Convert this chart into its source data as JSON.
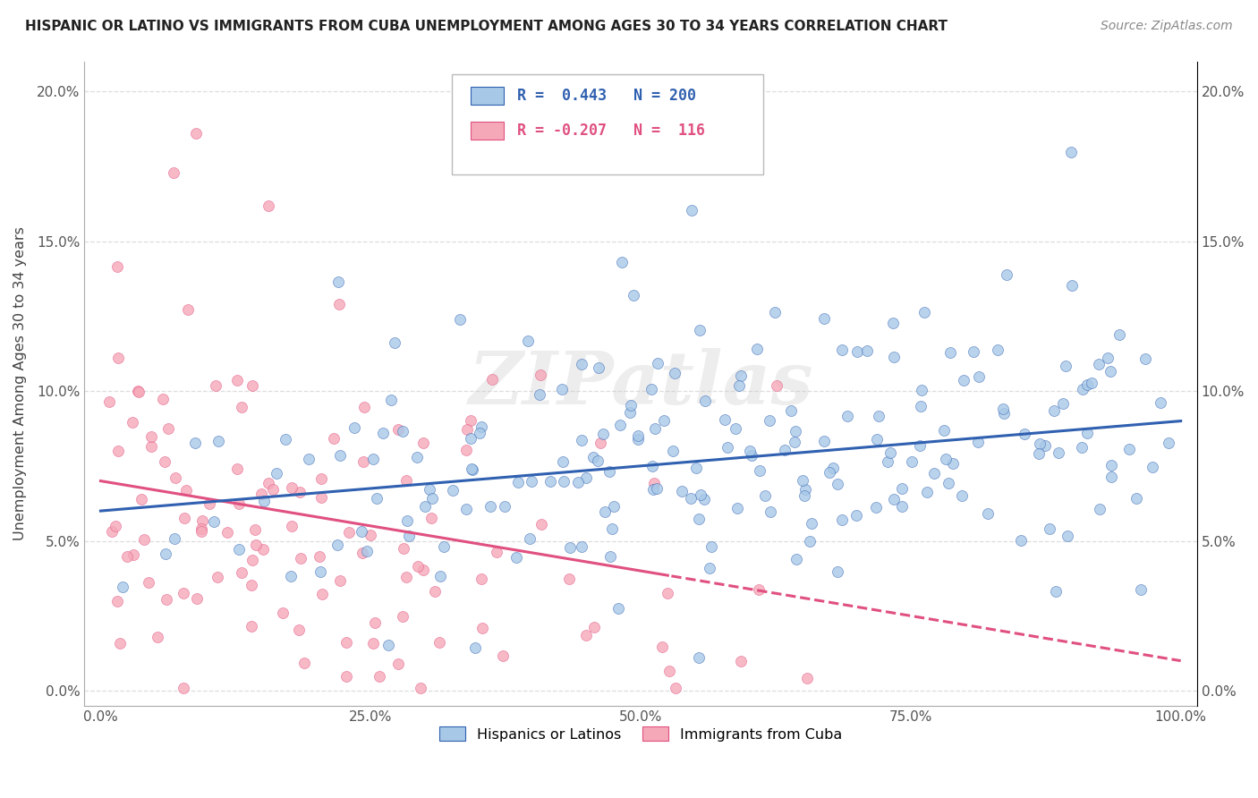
{
  "title": "HISPANIC OR LATINO VS IMMIGRANTS FROM CUBA UNEMPLOYMENT AMONG AGES 30 TO 34 YEARS CORRELATION CHART",
  "source": "Source: ZipAtlas.com",
  "ylabel": "Unemployment Among Ages 30 to 34 years",
  "r_blue": 0.443,
  "n_blue": 200,
  "r_pink": -0.207,
  "n_pink": 116,
  "legend_labels": [
    "Hispanics or Latinos",
    "Immigrants from Cuba"
  ],
  "blue_scatter_color": "#a8c8e8",
  "pink_scatter_color": "#f5a8b8",
  "blue_line_color": "#3060b0",
  "pink_line_color": "#e05080",
  "watermark_text": "ZIPatlas",
  "xmin": 0.0,
  "xmax": 1.0,
  "ymin": -0.005,
  "ymax": 0.21,
  "yticks": [
    0.0,
    0.05,
    0.1,
    0.15,
    0.2
  ],
  "ytick_labels": [
    "0.0%",
    "5.0%",
    "10.0%",
    "15.0%",
    "20.0%"
  ],
  "xticks": [
    0.0,
    0.25,
    0.5,
    0.75,
    1.0
  ],
  "xtick_labels": [
    "0.0%",
    "25.0%",
    "50.0%",
    "75.0%",
    "100.0%"
  ],
  "seed": 17,
  "background_color": "#ffffff",
  "grid_color": "#dddddd"
}
